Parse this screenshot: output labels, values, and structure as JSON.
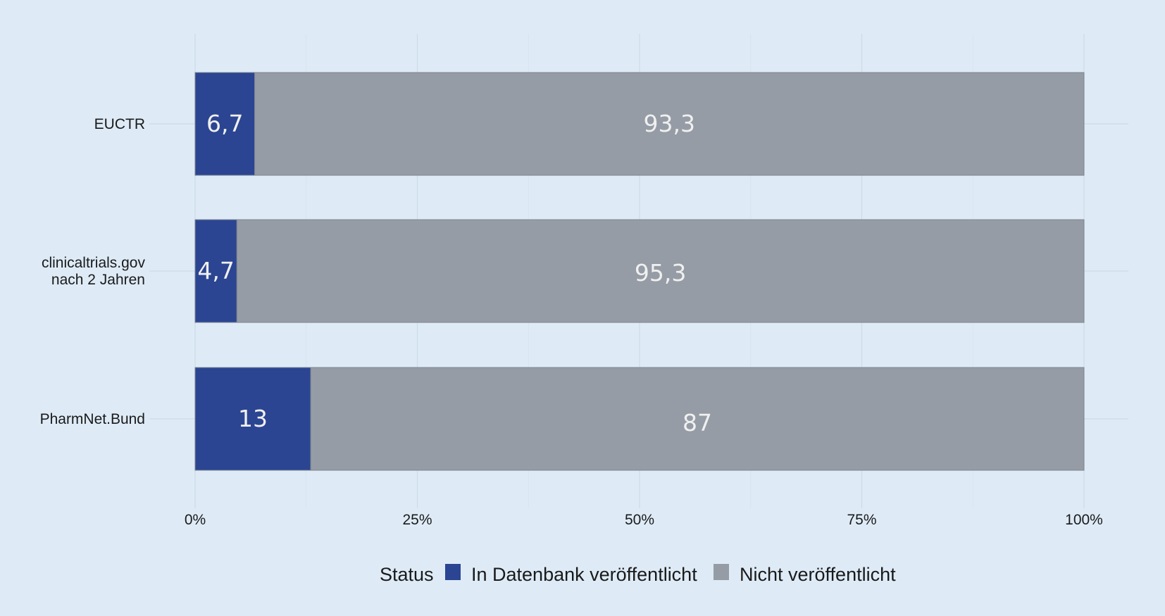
{
  "chart_data": {
    "type": "bar",
    "orientation": "horizontal",
    "stacked": true,
    "categories": [
      [
        "EUCTR"
      ],
      [
        "clinicaltrials.gov",
        "nach 2 Jahren"
      ],
      [
        "PharmNet.Bund"
      ]
    ],
    "series": [
      {
        "name": "In Datenbank veröffentlicht",
        "color": "#2b4592",
        "values": [
          6.7,
          4.7,
          13
        ],
        "labels": [
          "6,7",
          "4,7",
          "13"
        ]
      },
      {
        "name": "Nicht veröffentlicht",
        "color": "#959ca5",
        "values": [
          93.3,
          95.3,
          87
        ],
        "labels": [
          "93,3",
          "95,3",
          "87"
        ]
      }
    ],
    "xlim": [
      0,
      100
    ],
    "xticks": [
      {
        "value": 0,
        "label": "0%"
      },
      {
        "value": 25,
        "label": "25%"
      },
      {
        "value": 50,
        "label": "50%"
      },
      {
        "value": 75,
        "label": "75%"
      },
      {
        "value": 100,
        "label": "100%"
      }
    ],
    "grid": true,
    "legend": {
      "title": "Status",
      "position": "bottom"
    }
  }
}
